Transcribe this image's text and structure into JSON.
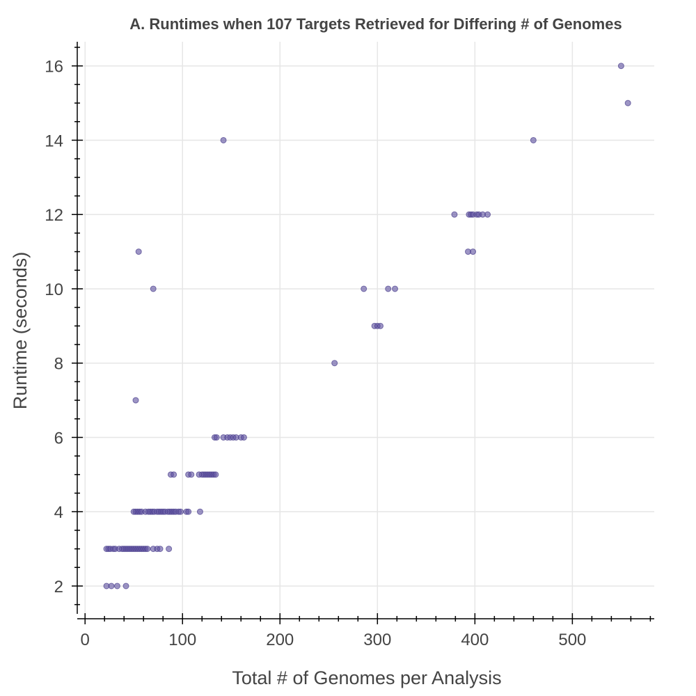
{
  "chart_data": {
    "type": "scatter",
    "title": "A. Runtimes when 107 Targets Retrieved for Differing # of Genomes",
    "xlabel": "Total # of Genomes per Analysis",
    "ylabel": "Runtime (seconds)",
    "xlim": [
      -8,
      584
    ],
    "ylim": [
      1.25,
      16.65
    ],
    "xticks": [
      0,
      100,
      200,
      300,
      400,
      500
    ],
    "yticks": [
      2,
      4,
      6,
      8,
      10,
      12,
      14,
      16
    ],
    "grid": true,
    "colors": {
      "marker": "#5b4f9e"
    },
    "points": [
      {
        "x": 22,
        "y": 2
      },
      {
        "x": 27,
        "y": 2
      },
      {
        "x": 33,
        "y": 2
      },
      {
        "x": 42,
        "y": 2
      },
      {
        "x": 22,
        "y": 3
      },
      {
        "x": 24,
        "y": 3
      },
      {
        "x": 26,
        "y": 3
      },
      {
        "x": 29,
        "y": 3
      },
      {
        "x": 31,
        "y": 3
      },
      {
        "x": 35,
        "y": 3
      },
      {
        "x": 38,
        "y": 3
      },
      {
        "x": 40,
        "y": 3
      },
      {
        "x": 42,
        "y": 3
      },
      {
        "x": 44,
        "y": 3
      },
      {
        "x": 46,
        "y": 3
      },
      {
        "x": 48,
        "y": 3
      },
      {
        "x": 50,
        "y": 3
      },
      {
        "x": 52,
        "y": 3
      },
      {
        "x": 54,
        "y": 3
      },
      {
        "x": 56,
        "y": 3
      },
      {
        "x": 58,
        "y": 3
      },
      {
        "x": 60,
        "y": 3
      },
      {
        "x": 62,
        "y": 3
      },
      {
        "x": 64,
        "y": 3
      },
      {
        "x": 70,
        "y": 3
      },
      {
        "x": 74,
        "y": 3
      },
      {
        "x": 77,
        "y": 3
      },
      {
        "x": 86,
        "y": 3
      },
      {
        "x": 50,
        "y": 4
      },
      {
        "x": 52,
        "y": 4
      },
      {
        "x": 54,
        "y": 4
      },
      {
        "x": 56,
        "y": 4
      },
      {
        "x": 58,
        "y": 4
      },
      {
        "x": 62,
        "y": 4
      },
      {
        "x": 65,
        "y": 4
      },
      {
        "x": 67,
        "y": 4
      },
      {
        "x": 69,
        "y": 4
      },
      {
        "x": 71,
        "y": 4
      },
      {
        "x": 74,
        "y": 4
      },
      {
        "x": 76,
        "y": 4
      },
      {
        "x": 78,
        "y": 4
      },
      {
        "x": 80,
        "y": 4
      },
      {
        "x": 82,
        "y": 4
      },
      {
        "x": 85,
        "y": 4
      },
      {
        "x": 87,
        "y": 4
      },
      {
        "x": 89,
        "y": 4
      },
      {
        "x": 91,
        "y": 4
      },
      {
        "x": 93,
        "y": 4
      },
      {
        "x": 96,
        "y": 4
      },
      {
        "x": 98,
        "y": 4
      },
      {
        "x": 104,
        "y": 4
      },
      {
        "x": 106,
        "y": 4
      },
      {
        "x": 118,
        "y": 4
      },
      {
        "x": 52,
        "y": 7
      },
      {
        "x": 55,
        "y": 11
      },
      {
        "x": 70,
        "y": 10
      },
      {
        "x": 88,
        "y": 5
      },
      {
        "x": 91,
        "y": 5
      },
      {
        "x": 106,
        "y": 5
      },
      {
        "x": 109,
        "y": 5
      },
      {
        "x": 117,
        "y": 5
      },
      {
        "x": 120,
        "y": 5
      },
      {
        "x": 122,
        "y": 5
      },
      {
        "x": 124,
        "y": 5
      },
      {
        "x": 126,
        "y": 5
      },
      {
        "x": 128,
        "y": 5
      },
      {
        "x": 130,
        "y": 5
      },
      {
        "x": 132,
        "y": 5
      },
      {
        "x": 134,
        "y": 5
      },
      {
        "x": 133,
        "y": 6
      },
      {
        "x": 135,
        "y": 6
      },
      {
        "x": 142,
        "y": 6
      },
      {
        "x": 146,
        "y": 6
      },
      {
        "x": 149,
        "y": 6
      },
      {
        "x": 152,
        "y": 6
      },
      {
        "x": 155,
        "y": 6
      },
      {
        "x": 160,
        "y": 6
      },
      {
        "x": 163,
        "y": 6
      },
      {
        "x": 142,
        "y": 14
      },
      {
        "x": 256,
        "y": 8
      },
      {
        "x": 286,
        "y": 10
      },
      {
        "x": 311,
        "y": 10
      },
      {
        "x": 318,
        "y": 10
      },
      {
        "x": 297,
        "y": 9
      },
      {
        "x": 300,
        "y": 9
      },
      {
        "x": 303,
        "y": 9
      },
      {
        "x": 379,
        "y": 12
      },
      {
        "x": 394,
        "y": 12
      },
      {
        "x": 396,
        "y": 12
      },
      {
        "x": 398,
        "y": 12
      },
      {
        "x": 402,
        "y": 12
      },
      {
        "x": 404,
        "y": 12
      },
      {
        "x": 408,
        "y": 12
      },
      {
        "x": 413,
        "y": 12
      },
      {
        "x": 393,
        "y": 11
      },
      {
        "x": 398,
        "y": 11
      },
      {
        "x": 460,
        "y": 14
      },
      {
        "x": 550,
        "y": 16
      },
      {
        "x": 557,
        "y": 15
      }
    ]
  }
}
